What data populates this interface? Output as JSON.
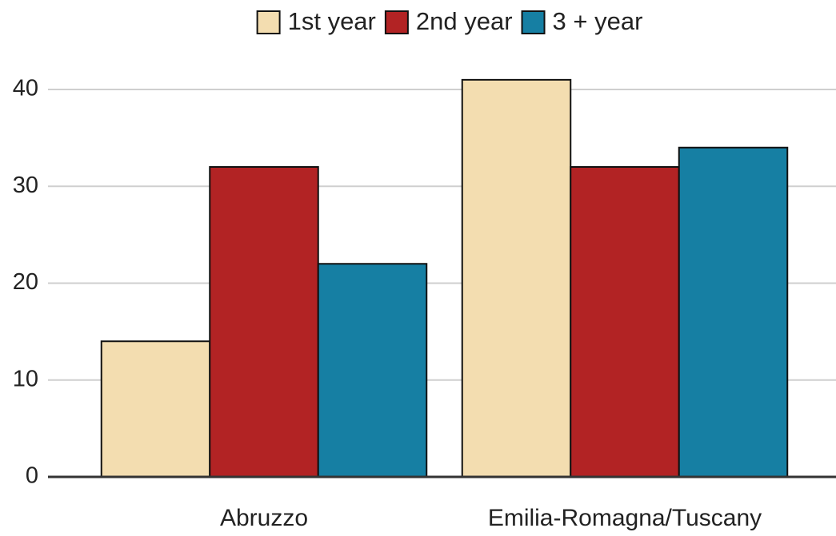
{
  "chart_data": {
    "type": "bar",
    "categories": [
      "Abruzzo",
      "Emilia-Romagna/Tuscany"
    ],
    "series": [
      {
        "name": "1st year",
        "color": "#f3ddb0",
        "values": [
          14,
          41
        ]
      },
      {
        "name": "2nd year",
        "color": "#b22324",
        "values": [
          32,
          32
        ]
      },
      {
        "name": "3 + year",
        "color": "#167fa3",
        "values": [
          22,
          34
        ]
      }
    ],
    "ylim": [
      0,
      43
    ],
    "yticks": [
      0,
      10,
      20,
      30,
      40
    ],
    "grid": true,
    "legend": "top"
  }
}
